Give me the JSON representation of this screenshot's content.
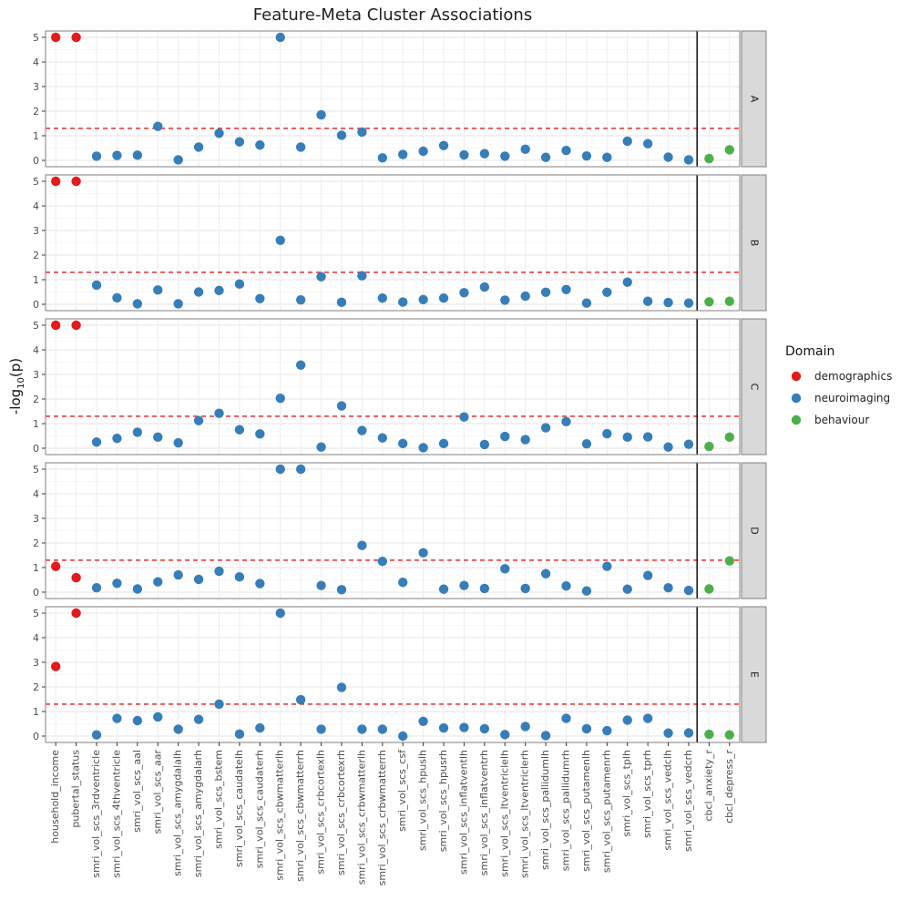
{
  "chart_data": {
    "type": "scatter",
    "title": "Feature-Meta Cluster Associations",
    "ylabel_main": "-log",
    "ylabel_sub": "10",
    "ylabel_tail": "(p)",
    "xlabel": "",
    "ylim": [
      0,
      5
    ],
    "yticks": [
      "0",
      "1",
      "2",
      "3",
      "4",
      "5"
    ],
    "threshold": 1.3,
    "separator_after_index": 32,
    "categories": [
      "household_income",
      "pubertal_status",
      "smri_vol_scs_3rdventricle",
      "smri_vol_scs_4thventricle",
      "smri_vol_scs_aal",
      "smri_vol_scs_aar",
      "smri_vol_scs_amygdalalh",
      "smri_vol_scs_amygdalarh",
      "smri_vol_scs_bstem",
      "smri_vol_scs_caudatelh",
      "smri_vol_scs_caudaterh",
      "smri_vol_scs_cbwmatterlh",
      "smri_vol_scs_cbwmatterrh",
      "smri_vol_scs_crbcortexlh",
      "smri_vol_scs_crbcortexrh",
      "smri_vol_scs_crbwmatterlh",
      "smri_vol_scs_crbwmatterrh",
      "smri_vol_scs_csf",
      "smri_vol_scs_hpuslh",
      "smri_vol_scs_hpusrh",
      "smri_vol_scs_inflatventlh",
      "smri_vol_scs_inflatventrh",
      "smri_vol_scs_ltventriclelh",
      "smri_vol_scs_ltventriclerh",
      "smri_vol_scs_pallidumlh",
      "smri_vol_scs_pallidumrh",
      "smri_vol_scs_putamenlh",
      "smri_vol_scs_putamenrh",
      "smri_vol_scs_tplh",
      "smri_vol_scs_tprh",
      "smri_vol_scs_vedclh",
      "smri_vol_scs_vedcrh",
      "cbcl_anxiety_r",
      "cbcl_depress_r"
    ],
    "domains": [
      "demographics",
      "demographics",
      "neuroimaging",
      "neuroimaging",
      "neuroimaging",
      "neuroimaging",
      "neuroimaging",
      "neuroimaging",
      "neuroimaging",
      "neuroimaging",
      "neuroimaging",
      "neuroimaging",
      "neuroimaging",
      "neuroimaging",
      "neuroimaging",
      "neuroimaging",
      "neuroimaging",
      "neuroimaging",
      "neuroimaging",
      "neuroimaging",
      "neuroimaging",
      "neuroimaging",
      "neuroimaging",
      "neuroimaging",
      "neuroimaging",
      "neuroimaging",
      "neuroimaging",
      "neuroimaging",
      "neuroimaging",
      "neuroimaging",
      "neuroimaging",
      "neuroimaging",
      "behaviour",
      "behaviour"
    ],
    "legend": {
      "title": "Domain",
      "placement": "right",
      "items": [
        {
          "label": "demographics",
          "color": "#e41a1c"
        },
        {
          "label": "neuroimaging",
          "color": "#377eb8"
        },
        {
          "label": "behaviour",
          "color": "#4daf4a"
        }
      ]
    },
    "threshold_color": "#e41a1c",
    "panels": [
      {
        "label": "A",
        "values": [
          5,
          5,
          0.17,
          0.2,
          0.21,
          1.38,
          0.02,
          0.54,
          1.1,
          0.75,
          0.62,
          5,
          0.54,
          1.85,
          1.02,
          1.15,
          0.1,
          0.24,
          0.37,
          0.6,
          0.22,
          0.27,
          0.17,
          0.45,
          0.12,
          0.4,
          0.18,
          0.12,
          0.78,
          0.68,
          0.13,
          0.02,
          0.07,
          0.43
        ]
      },
      {
        "label": "B",
        "values": [
          5,
          5,
          0.78,
          0.26,
          0.02,
          0.58,
          0.02,
          0.5,
          0.56,
          0.82,
          0.23,
          2.6,
          0.18,
          1.12,
          0.08,
          1.16,
          0.25,
          0.09,
          0.19,
          0.25,
          0.47,
          0.7,
          0.17,
          0.33,
          0.49,
          0.6,
          0.05,
          0.49,
          0.9,
          0.12,
          0.07,
          0.05,
          0.1,
          0.12
        ]
      },
      {
        "label": "C",
        "values": [
          5,
          5,
          0.25,
          0.4,
          0.65,
          0.45,
          0.22,
          1.12,
          1.42,
          0.75,
          0.58,
          2.03,
          3.38,
          0.05,
          1.72,
          0.72,
          0.42,
          0.19,
          0.02,
          0.19,
          1.27,
          0.15,
          0.48,
          0.35,
          0.83,
          1.08,
          0.18,
          0.59,
          0.45,
          0.46,
          0.05,
          0.16,
          0.07,
          0.45
        ]
      },
      {
        "label": "D",
        "values": [
          1.05,
          0.59,
          0.18,
          0.36,
          0.13,
          0.42,
          0.7,
          0.52,
          0.85,
          0.62,
          0.35,
          5,
          5,
          0.27,
          0.1,
          1.9,
          1.25,
          0.4,
          1.6,
          0.12,
          0.27,
          0.15,
          0.95,
          0.15,
          0.75,
          0.25,
          0.05,
          1.05,
          0.12,
          0.68,
          0.18,
          0.07,
          0.13,
          1.27
        ]
      },
      {
        "label": "E",
        "values": [
          2.83,
          5,
          0.05,
          0.72,
          0.63,
          0.78,
          0.28,
          0.68,
          1.3,
          0.08,
          0.33,
          5,
          1.48,
          0.28,
          1.98,
          0.28,
          0.28,
          0.0,
          0.6,
          0.33,
          0.35,
          0.3,
          0.06,
          0.39,
          0.02,
          0.72,
          0.3,
          0.22,
          0.65,
          0.72,
          0.12,
          0.13,
          0.07,
          0.05
        ]
      }
    ]
  }
}
